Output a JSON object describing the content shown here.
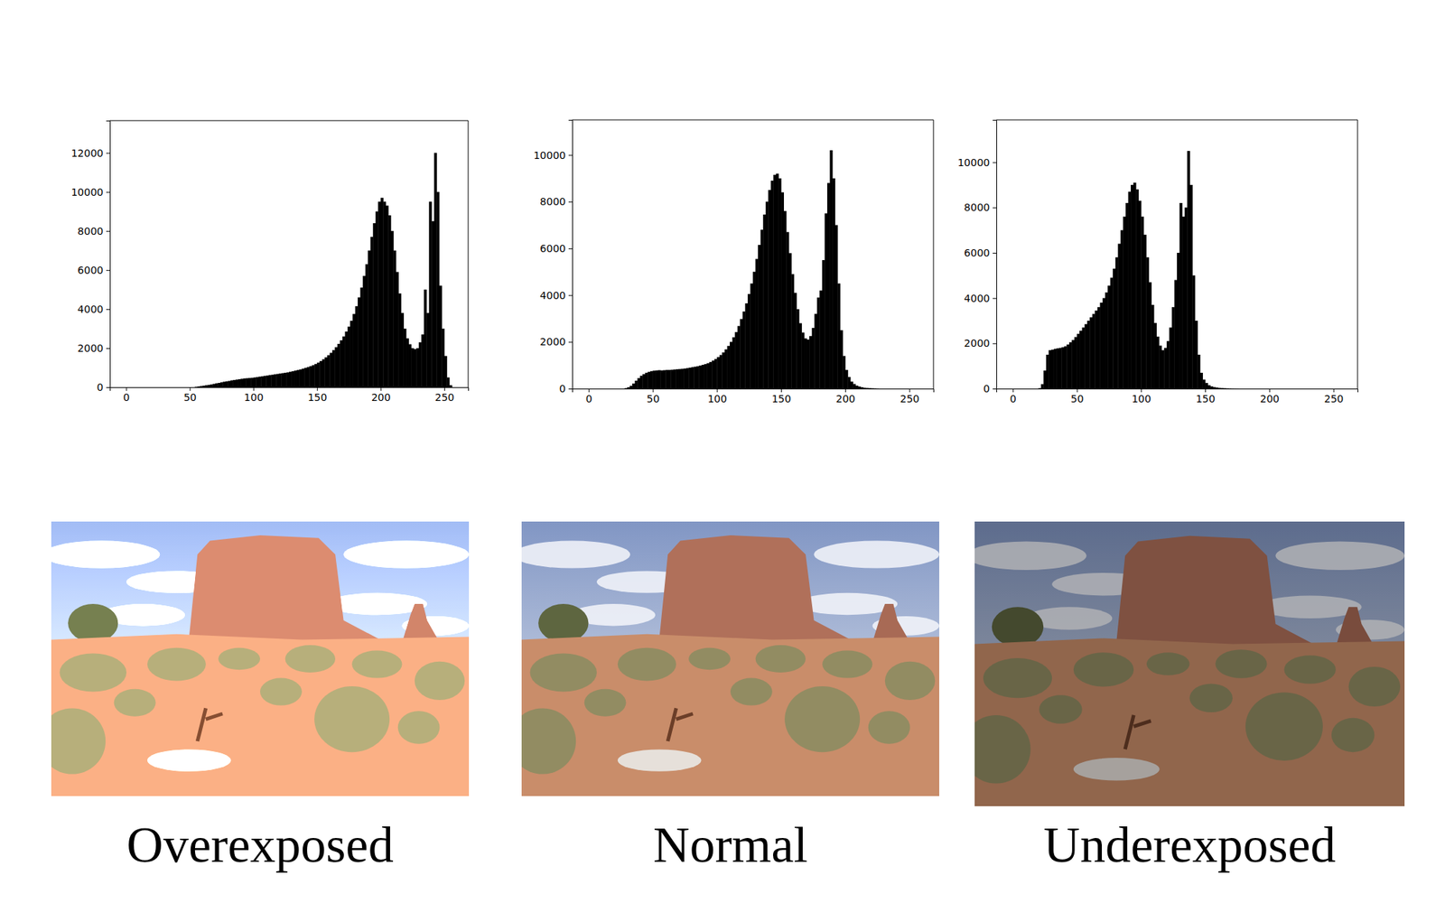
{
  "chart_data": [
    {
      "type": "histogram",
      "caption": "Overexposed",
      "xlim": [
        -12.8,
        268.8
      ],
      "ylim": [
        0,
        13650
      ],
      "xticks": [
        0,
        50,
        100,
        150,
        200,
        250
      ],
      "yticks": [
        0,
        2000,
        4000,
        6000,
        8000,
        10000,
        12000
      ],
      "color": "#000000",
      "bins": [
        54,
        56,
        58,
        60,
        62,
        64,
        66,
        68,
        70,
        72,
        74,
        76,
        78,
        80,
        82,
        84,
        86,
        88,
        90,
        92,
        94,
        96,
        98,
        100,
        102,
        104,
        106,
        108,
        110,
        112,
        114,
        116,
        118,
        120,
        122,
        124,
        126,
        128,
        130,
        132,
        134,
        136,
        138,
        140,
        142,
        144,
        146,
        148,
        150,
        152,
        154,
        156,
        158,
        160,
        162,
        164,
        166,
        168,
        170,
        172,
        174,
        176,
        178,
        180,
        182,
        184,
        186,
        188,
        190,
        192,
        194,
        196,
        198,
        200,
        202,
        204,
        206,
        208,
        210,
        212,
        214,
        216,
        218,
        220,
        222,
        224,
        226,
        228,
        230,
        232,
        234,
        236,
        238,
        240,
        242,
        244,
        246,
        248,
        250,
        252,
        254,
        256
      ],
      "counts": [
        20,
        40,
        60,
        80,
        100,
        120,
        140,
        170,
        200,
        220,
        250,
        280,
        300,
        320,
        350,
        370,
        390,
        410,
        430,
        450,
        460,
        470,
        480,
        500,
        520,
        540,
        560,
        580,
        600,
        620,
        640,
        660,
        680,
        700,
        720,
        740,
        760,
        790,
        820,
        850,
        880,
        910,
        950,
        990,
        1030,
        1080,
        1130,
        1190,
        1260,
        1340,
        1430,
        1530,
        1640,
        1760,
        1900,
        2050,
        2220,
        2400,
        2600,
        2850,
        3100,
        3400,
        3750,
        4150,
        4600,
        5100,
        5700,
        6300,
        7000,
        7700,
        8400,
        9000,
        9500,
        9700,
        9500,
        9300,
        8800,
        8000,
        7000,
        5900,
        4800,
        3800,
        3000,
        2500,
        2200,
        2000,
        1950,
        2000,
        2300,
        2700,
        5000,
        3800,
        9500,
        8500,
        12000,
        10000,
        5200,
        3000,
        1600,
        500,
        100
      ]
    },
    {
      "type": "histogram",
      "caption": "Normal",
      "xlim": [
        -12.8,
        268.8
      ],
      "ylim": [
        0,
        11500
      ],
      "xticks": [
        0,
        50,
        100,
        150,
        200,
        250
      ],
      "yticks": [
        0,
        2000,
        4000,
        6000,
        8000,
        10000
      ],
      "color": "#000000",
      "bins": [
        28,
        30,
        32,
        34,
        36,
        38,
        40,
        42,
        44,
        46,
        48,
        50,
        52,
        54,
        56,
        58,
        60,
        62,
        64,
        66,
        68,
        70,
        72,
        74,
        76,
        78,
        80,
        82,
        84,
        86,
        88,
        90,
        92,
        94,
        96,
        98,
        100,
        102,
        104,
        106,
        108,
        110,
        112,
        114,
        116,
        118,
        120,
        122,
        124,
        126,
        128,
        130,
        132,
        134,
        136,
        138,
        140,
        142,
        144,
        146,
        148,
        150,
        152,
        154,
        156,
        158,
        160,
        162,
        164,
        166,
        168,
        170,
        172,
        174,
        176,
        178,
        180,
        182,
        184,
        186,
        188,
        190,
        192,
        194,
        196,
        198,
        200,
        202,
        204,
        206,
        208,
        210,
        212,
        214,
        216,
        218,
        220,
        222,
        224,
        226
      ],
      "counts": [
        20,
        60,
        120,
        220,
        340,
        450,
        550,
        620,
        680,
        720,
        750,
        770,
        780,
        790,
        780,
        790,
        800,
        800,
        810,
        820,
        830,
        840,
        850,
        860,
        880,
        900,
        920,
        940,
        960,
        990,
        1020,
        1050,
        1090,
        1140,
        1200,
        1270,
        1350,
        1440,
        1550,
        1680,
        1830,
        2000,
        2200,
        2420,
        2680,
        2980,
        3300,
        3650,
        4050,
        4500,
        5000,
        5550,
        6150,
        6800,
        7450,
        8000,
        8500,
        8900,
        9150,
        9200,
        9000,
        8400,
        7600,
        6700,
        5800,
        4900,
        4100,
        3400,
        2800,
        2400,
        2150,
        2100,
        2250,
        2600,
        3200,
        3900,
        4200,
        5500,
        7500,
        8800,
        10200,
        9000,
        7000,
        4500,
        2500,
        1400,
        800,
        500,
        300,
        200,
        130,
        90,
        60,
        40,
        30,
        20,
        15,
        10,
        5
      ]
    },
    {
      "type": "histogram",
      "caption": "Underexposed",
      "xlim": [
        -12.8,
        268.8
      ],
      "ylim": [
        0,
        11870
      ],
      "xticks": [
        0,
        50,
        100,
        150,
        200,
        250
      ],
      "yticks": [
        0,
        2000,
        4000,
        6000,
        8000,
        10000
      ],
      "color": "#000000",
      "bins": [
        20,
        22,
        24,
        26,
        28,
        30,
        32,
        34,
        36,
        38,
        40,
        42,
        44,
        46,
        48,
        50,
        52,
        54,
        56,
        58,
        60,
        62,
        64,
        66,
        68,
        70,
        72,
        74,
        76,
        78,
        80,
        82,
        84,
        86,
        88,
        90,
        92,
        94,
        96,
        98,
        100,
        102,
        104,
        106,
        108,
        110,
        112,
        114,
        116,
        118,
        120,
        122,
        124,
        126,
        128,
        130,
        132,
        134,
        136,
        138,
        140,
        142,
        144,
        146,
        148,
        150,
        152,
        154,
        156,
        158,
        160,
        162,
        164,
        166,
        168,
        170,
        172,
        174,
        176
      ],
      "counts": [
        20,
        200,
        800,
        1500,
        1700,
        1720,
        1760,
        1780,
        1800,
        1830,
        1870,
        1950,
        2050,
        2150,
        2280,
        2420,
        2560,
        2700,
        2850,
        3000,
        3150,
        3300,
        3450,
        3600,
        3800,
        4000,
        4250,
        4550,
        4900,
        5300,
        5800,
        6400,
        7000,
        7600,
        8200,
        8700,
        9000,
        9100,
        8800,
        8300,
        7600,
        6800,
        5800,
        4700,
        3700,
        2900,
        2300,
        1900,
        1700,
        1800,
        2100,
        2700,
        3600,
        4800,
        6000,
        8200,
        7600,
        8000,
        10500,
        9000,
        5000,
        3000,
        1500,
        700,
        400,
        250,
        150,
        100,
        70,
        50,
        35,
        25,
        18,
        12,
        8,
        5,
        3,
        2
      ]
    }
  ]
}
